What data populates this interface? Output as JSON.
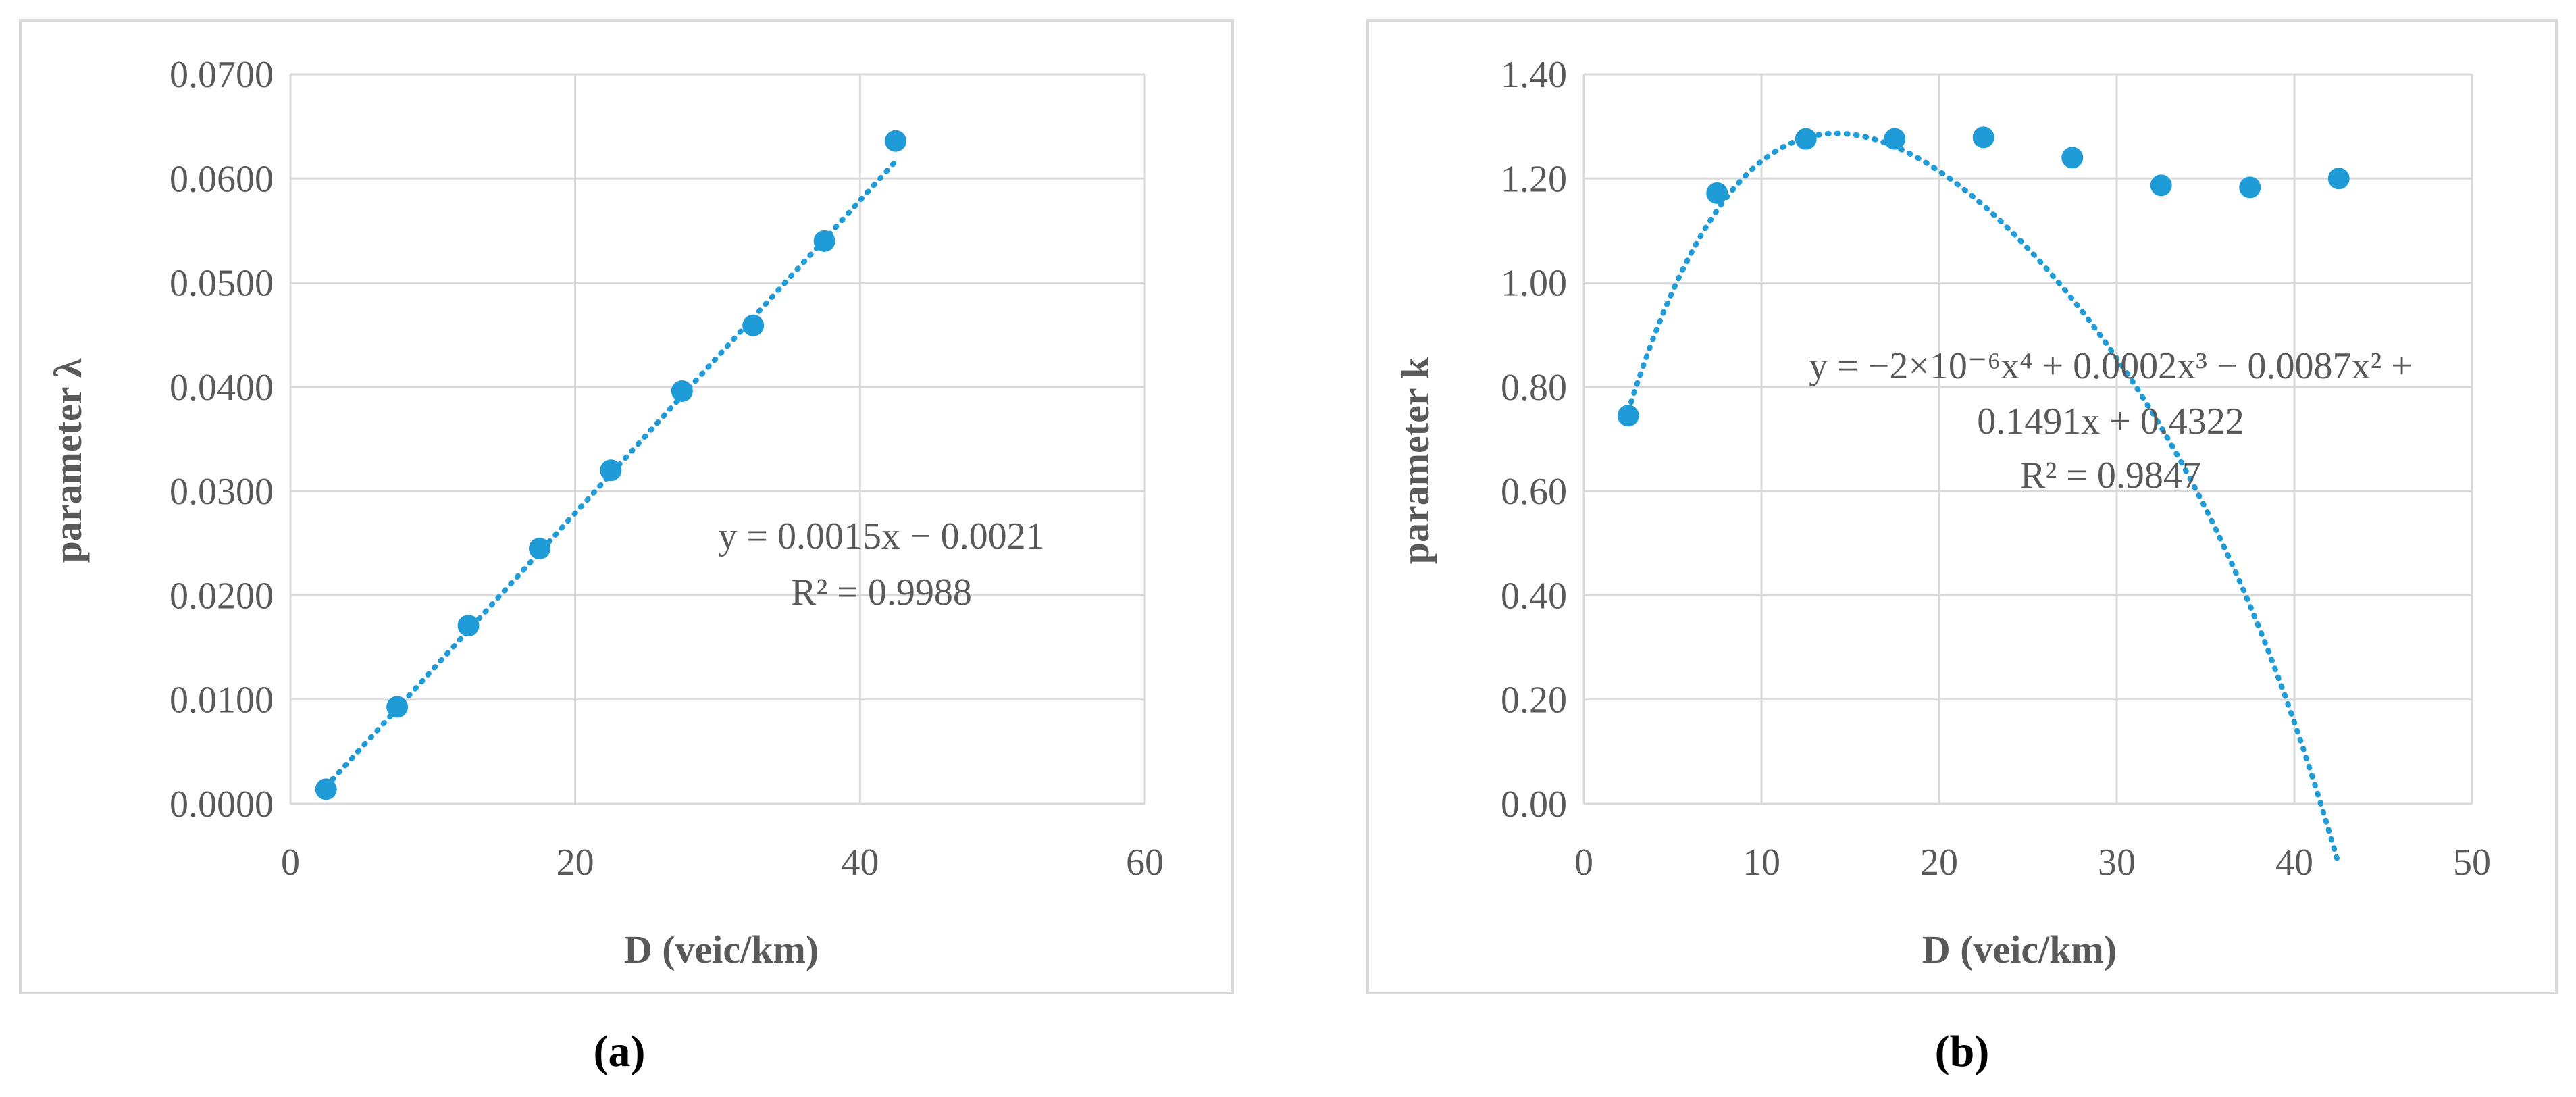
{
  "chart_data": [
    {
      "type": "scatter",
      "panel": "a",
      "title": "",
      "xlabel": "D (veic/km)",
      "ylabel": "parameter λ",
      "xlim": [
        0,
        60
      ],
      "ylim": [
        0,
        0.07
      ],
      "x_ticks": [
        "0",
        "20",
        "40",
        "60"
      ],
      "y_ticks": [
        "0.0000",
        "0.0100",
        "0.0200",
        "0.0300",
        "0.0400",
        "0.0500",
        "0.0600",
        "0.0700"
      ],
      "grid": true,
      "marker_color": "#1f9bd7",
      "points": {
        "x": [
          2.5,
          7.5,
          12.5,
          17.5,
          22.5,
          27.5,
          32.5,
          37.5,
          42.5
        ],
        "y": [
          0.0014,
          0.0093,
          0.0171,
          0.0245,
          0.032,
          0.0396,
          0.0459,
          0.054,
          0.0636
        ]
      },
      "trendline": {
        "type": "linear",
        "coefficients": [
          0.0015,
          -0.0021
        ],
        "equation": "y = 0.0015x − 0.0021",
        "r2": "R² = 0.9988"
      }
    },
    {
      "type": "scatter",
      "panel": "b",
      "title": "",
      "xlabel": "D (veic/km)",
      "ylabel": "parameter k",
      "xlim": [
        0,
        50
      ],
      "ylim": [
        0,
        1.4
      ],
      "x_ticks": [
        "0",
        "10",
        "20",
        "30",
        "40",
        "50"
      ],
      "y_ticks": [
        "0.00",
        "0.20",
        "0.40",
        "0.60",
        "0.80",
        "1.00",
        "1.20",
        "1.40"
      ],
      "grid": true,
      "marker_color": "#1f9bd7",
      "points": {
        "x": [
          2.5,
          7.5,
          12.5,
          17.5,
          22.5,
          27.5,
          32.5,
          37.5,
          42.5
        ],
        "y": [
          0.745,
          1.172,
          1.276,
          1.276,
          1.279,
          1.24,
          1.187,
          1.183,
          1.2
        ]
      },
      "trendline": {
        "type": "polynomial",
        "coefficients": [
          -2e-06,
          0.0002,
          -0.0087,
          0.1491,
          0.4322
        ],
        "equation_line1": "y = −2×10⁻⁶x⁴ + 0.0002x³ − 0.0087x² +",
        "equation_line2": "0.1491x + 0.4322",
        "r2": "R² = 0.9847"
      }
    }
  ],
  "captions": [
    "(a)",
    "(b)"
  ]
}
